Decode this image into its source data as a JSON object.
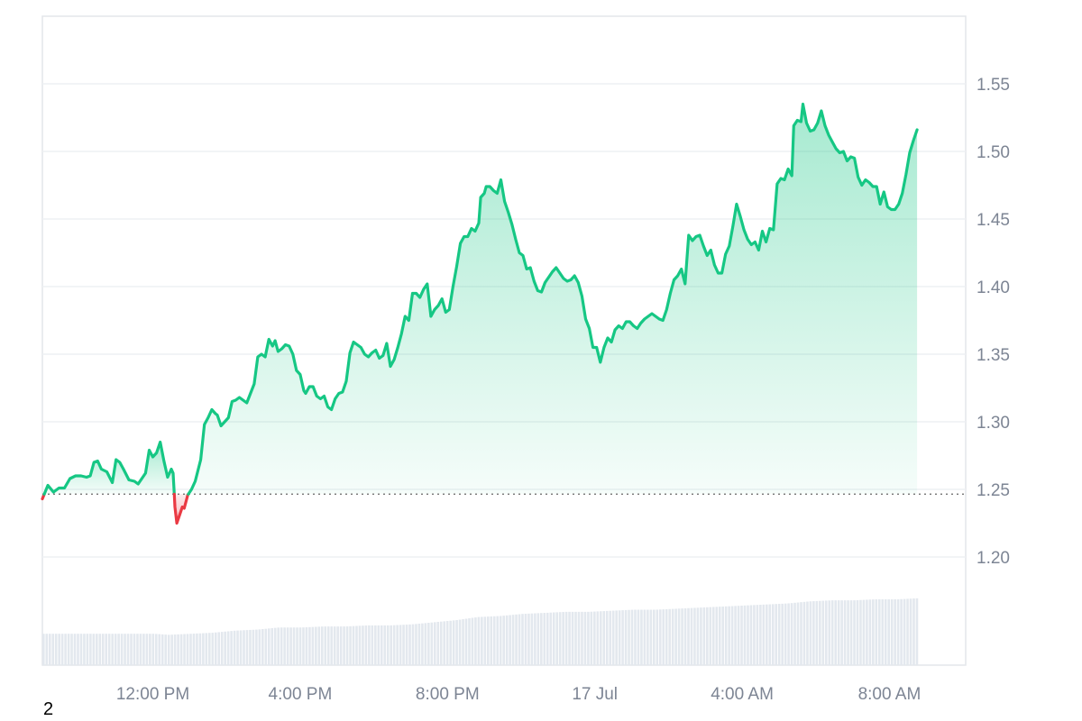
{
  "chart_data": {
    "type": "area",
    "title": "",
    "xlabel": "",
    "ylabel": "",
    "baseline": 1.2465,
    "ylim": [
      1.12,
      1.6
    ],
    "y_ticks": [
      1.2,
      1.25,
      1.3,
      1.35,
      1.4,
      1.45,
      1.5,
      1.55
    ],
    "y_tick_labels": [
      "1.20",
      "1.25",
      "1.30",
      "1.35",
      "1.40",
      "1.45",
      "1.50",
      "1.55"
    ],
    "x_tick_labels": [
      "12:00 PM",
      "4:00 PM",
      "8:00 PM",
      "17 Jul",
      "4:00 AM",
      "8:00 AM"
    ],
    "x_tick_hours": [
      3.0,
      7.0,
      11.0,
      15.0,
      19.0,
      23.0
    ],
    "x_range_hours": [
      0.0,
      25.07
    ],
    "grid": true,
    "legend": "none",
    "colors": {
      "up": "#16c784",
      "down": "#ea3943",
      "volume": "#e3e8ee",
      "grid": "#eef0f3",
      "axis_text": "#7d8594"
    },
    "series": [
      {
        "values": [
          [
            0.0,
            1.243
          ],
          [
            0.15,
            1.253
          ],
          [
            0.3,
            1.248
          ],
          [
            0.45,
            1.251
          ],
          [
            0.6,
            1.251
          ],
          [
            0.75,
            1.258
          ],
          [
            0.9,
            1.26
          ],
          [
            1.05,
            1.26
          ],
          [
            1.2,
            1.259
          ],
          [
            1.3,
            1.26
          ],
          [
            1.4,
            1.27
          ],
          [
            1.5,
            1.271
          ],
          [
            1.6,
            1.265
          ],
          [
            1.75,
            1.263
          ],
          [
            1.9,
            1.255
          ],
          [
            2.0,
            1.272
          ],
          [
            2.1,
            1.27
          ],
          [
            2.2,
            1.265
          ],
          [
            2.35,
            1.257
          ],
          [
            2.5,
            1.256
          ],
          [
            2.6,
            1.254
          ],
          [
            2.7,
            1.258
          ],
          [
            2.8,
            1.262
          ],
          [
            2.9,
            1.279
          ],
          [
            3.0,
            1.274
          ],
          [
            3.1,
            1.277
          ],
          [
            3.2,
            1.285
          ],
          [
            3.3,
            1.271
          ],
          [
            3.4,
            1.259
          ],
          [
            3.5,
            1.265
          ],
          [
            3.55,
            1.262
          ],
          [
            3.6,
            1.237
          ],
          [
            3.65,
            1.225
          ],
          [
            3.75,
            1.233
          ],
          [
            3.8,
            1.237
          ],
          [
            3.85,
            1.236
          ],
          [
            3.95,
            1.246
          ],
          [
            4.05,
            1.25
          ],
          [
            4.15,
            1.256
          ],
          [
            4.3,
            1.272
          ],
          [
            4.4,
            1.298
          ],
          [
            4.5,
            1.303
          ],
          [
            4.6,
            1.309
          ],
          [
            4.7,
            1.306
          ],
          [
            4.75,
            1.305
          ],
          [
            4.85,
            1.297
          ],
          [
            4.95,
            1.3
          ],
          [
            5.05,
            1.303
          ],
          [
            5.15,
            1.315
          ],
          [
            5.25,
            1.316
          ],
          [
            5.35,
            1.318
          ],
          [
            5.45,
            1.316
          ],
          [
            5.55,
            1.314
          ],
          [
            5.65,
            1.321
          ],
          [
            5.75,
            1.328
          ],
          [
            5.85,
            1.348
          ],
          [
            5.95,
            1.35
          ],
          [
            6.05,
            1.348
          ],
          [
            6.15,
            1.361
          ],
          [
            6.25,
            1.356
          ],
          [
            6.32,
            1.36
          ],
          [
            6.4,
            1.352
          ],
          [
            6.5,
            1.354
          ],
          [
            6.6,
            1.357
          ],
          [
            6.7,
            1.356
          ],
          [
            6.8,
            1.35
          ],
          [
            6.9,
            1.338
          ],
          [
            7.0,
            1.335
          ],
          [
            7.1,
            1.323
          ],
          [
            7.15,
            1.321
          ],
          [
            7.25,
            1.326
          ],
          [
            7.35,
            1.326
          ],
          [
            7.45,
            1.319
          ],
          [
            7.55,
            1.317
          ],
          [
            7.65,
            1.319
          ],
          [
            7.75,
            1.311
          ],
          [
            7.85,
            1.309
          ],
          [
            7.95,
            1.317
          ],
          [
            8.05,
            1.321
          ],
          [
            8.15,
            1.322
          ],
          [
            8.25,
            1.33
          ],
          [
            8.35,
            1.351
          ],
          [
            8.45,
            1.359
          ],
          [
            8.55,
            1.357
          ],
          [
            8.65,
            1.355
          ],
          [
            8.75,
            1.35
          ],
          [
            8.85,
            1.348
          ],
          [
            8.95,
            1.351
          ],
          [
            9.05,
            1.353
          ],
          [
            9.15,
            1.347
          ],
          [
            9.25,
            1.349
          ],
          [
            9.35,
            1.358
          ],
          [
            9.45,
            1.341
          ],
          [
            9.55,
            1.346
          ],
          [
            9.65,
            1.355
          ],
          [
            9.75,
            1.365
          ],
          [
            9.85,
            1.378
          ],
          [
            9.95,
            1.375
          ],
          [
            10.05,
            1.395
          ],
          [
            10.15,
            1.395
          ],
          [
            10.25,
            1.392
          ],
          [
            10.35,
            1.398
          ],
          [
            10.45,
            1.402
          ],
          [
            10.55,
            1.378
          ],
          [
            10.65,
            1.383
          ],
          [
            10.75,
            1.386
          ],
          [
            10.85,
            1.391
          ],
          [
            10.95,
            1.381
          ],
          [
            11.05,
            1.383
          ],
          [
            11.15,
            1.4
          ],
          [
            11.25,
            1.415
          ],
          [
            11.35,
            1.432
          ],
          [
            11.45,
            1.437
          ],
          [
            11.55,
            1.437
          ],
          [
            11.65,
            1.443
          ],
          [
            11.75,
            1.441
          ],
          [
            11.85,
            1.447
          ],
          [
            11.9,
            1.466
          ],
          [
            12.0,
            1.469
          ],
          [
            12.05,
            1.474
          ],
          [
            12.15,
            1.474
          ],
          [
            12.25,
            1.471
          ],
          [
            12.35,
            1.469
          ],
          [
            12.45,
            1.479
          ],
          [
            12.55,
            1.463
          ],
          [
            12.65,
            1.455
          ],
          [
            12.75,
            1.446
          ],
          [
            12.85,
            1.435
          ],
          [
            12.95,
            1.425
          ],
          [
            13.05,
            1.423
          ],
          [
            13.15,
            1.413
          ],
          [
            13.25,
            1.414
          ],
          [
            13.35,
            1.404
          ],
          [
            13.45,
            1.397
          ],
          [
            13.55,
            1.396
          ],
          [
            13.65,
            1.403
          ],
          [
            13.75,
            1.407
          ],
          [
            13.85,
            1.411
          ],
          [
            13.95,
            1.414
          ],
          [
            14.05,
            1.41
          ],
          [
            14.15,
            1.406
          ],
          [
            14.25,
            1.404
          ],
          [
            14.35,
            1.405
          ],
          [
            14.45,
            1.408
          ],
          [
            14.55,
            1.403
          ],
          [
            14.65,
            1.393
          ],
          [
            14.75,
            1.376
          ],
          [
            14.85,
            1.369
          ],
          [
            14.95,
            1.355
          ],
          [
            15.05,
            1.355
          ],
          [
            15.15,
            1.344
          ],
          [
            15.25,
            1.355
          ],
          [
            15.35,
            1.362
          ],
          [
            15.45,
            1.359
          ],
          [
            15.55,
            1.368
          ],
          [
            15.65,
            1.371
          ],
          [
            15.75,
            1.369
          ],
          [
            15.85,
            1.374
          ],
          [
            15.95,
            1.374
          ],
          [
            16.05,
            1.371
          ],
          [
            16.15,
            1.369
          ],
          [
            16.25,
            1.373
          ],
          [
            16.35,
            1.376
          ],
          [
            16.45,
            1.378
          ],
          [
            16.55,
            1.38
          ],
          [
            16.65,
            1.378
          ],
          [
            16.75,
            1.376
          ],
          [
            16.85,
            1.375
          ],
          [
            16.95,
            1.383
          ],
          [
            17.05,
            1.395
          ],
          [
            17.15,
            1.405
          ],
          [
            17.25,
            1.408
          ],
          [
            17.35,
            1.413
          ],
          [
            17.45,
            1.402
          ],
          [
            17.55,
            1.438
          ],
          [
            17.65,
            1.434
          ],
          [
            17.75,
            1.437
          ],
          [
            17.85,
            1.438
          ],
          [
            17.95,
            1.43
          ],
          [
            18.05,
            1.423
          ],
          [
            18.15,
            1.427
          ],
          [
            18.25,
            1.416
          ],
          [
            18.35,
            1.41
          ],
          [
            18.45,
            1.41
          ],
          [
            18.55,
            1.424
          ],
          [
            18.65,
            1.43
          ],
          [
            18.75,
            1.445
          ],
          [
            18.85,
            1.461
          ],
          [
            18.95,
            1.452
          ],
          [
            19.05,
            1.442
          ],
          [
            19.15,
            1.435
          ],
          [
            19.25,
            1.431
          ],
          [
            19.35,
            1.433
          ],
          [
            19.45,
            1.427
          ],
          [
            19.55,
            1.441
          ],
          [
            19.65,
            1.433
          ],
          [
            19.75,
            1.443
          ],
          [
            19.85,
            1.442
          ],
          [
            19.95,
            1.476
          ],
          [
            20.05,
            1.48
          ],
          [
            20.15,
            1.479
          ],
          [
            20.25,
            1.487
          ],
          [
            20.35,
            1.482
          ],
          [
            20.4,
            1.519
          ],
          [
            20.5,
            1.523
          ],
          [
            20.6,
            1.522
          ],
          [
            20.65,
            1.535
          ],
          [
            20.75,
            1.521
          ],
          [
            20.85,
            1.515
          ],
          [
            20.95,
            1.516
          ],
          [
            21.05,
            1.521
          ],
          [
            21.15,
            1.53
          ],
          [
            21.25,
            1.519
          ],
          [
            21.35,
            1.512
          ],
          [
            21.45,
            1.507
          ],
          [
            21.55,
            1.502
          ],
          [
            21.65,
            1.499
          ],
          [
            21.75,
            1.5
          ],
          [
            21.85,
            1.493
          ],
          [
            21.95,
            1.496
          ],
          [
            22.05,
            1.495
          ],
          [
            22.15,
            1.481
          ],
          [
            22.25,
            1.475
          ],
          [
            22.35,
            1.479
          ],
          [
            22.45,
            1.477
          ],
          [
            22.55,
            1.474
          ],
          [
            22.65,
            1.474
          ],
          [
            22.75,
            1.461
          ],
          [
            22.85,
            1.47
          ],
          [
            22.95,
            1.459
          ],
          [
            23.05,
            1.457
          ],
          [
            23.15,
            1.457
          ],
          [
            23.25,
            1.461
          ],
          [
            23.35,
            1.469
          ],
          [
            23.45,
            1.483
          ],
          [
            23.55,
            1.499
          ],
          [
            23.65,
            1.508
          ],
          [
            23.75,
            1.516
          ]
        ]
      }
    ],
    "volume_series": {
      "values": [
        [
          0.0,
          0.3
        ],
        [
          0.6,
          0.3
        ],
        [
          1.2,
          0.3
        ],
        [
          1.8,
          0.3
        ],
        [
          2.4,
          0.3
        ],
        [
          3.0,
          0.3
        ],
        [
          3.4,
          0.29
        ],
        [
          4.0,
          0.3
        ],
        [
          4.6,
          0.31
        ],
        [
          5.2,
          0.33
        ],
        [
          5.8,
          0.34
        ],
        [
          6.4,
          0.36
        ],
        [
          7.0,
          0.36
        ],
        [
          7.6,
          0.37
        ],
        [
          8.2,
          0.37
        ],
        [
          8.8,
          0.38
        ],
        [
          9.4,
          0.38
        ],
        [
          10.0,
          0.39
        ],
        [
          10.6,
          0.41
        ],
        [
          11.2,
          0.43
        ],
        [
          11.8,
          0.46
        ],
        [
          12.4,
          0.47
        ],
        [
          13.0,
          0.49
        ],
        [
          13.6,
          0.5
        ],
        [
          14.2,
          0.51
        ],
        [
          14.8,
          0.51
        ],
        [
          15.4,
          0.52
        ],
        [
          16.0,
          0.53
        ],
        [
          16.6,
          0.53
        ],
        [
          17.2,
          0.54
        ],
        [
          17.8,
          0.55
        ],
        [
          18.4,
          0.56
        ],
        [
          19.0,
          0.57
        ],
        [
          19.6,
          0.58
        ],
        [
          20.2,
          0.59
        ],
        [
          20.8,
          0.61
        ],
        [
          21.4,
          0.62
        ],
        [
          22.0,
          0.62
        ],
        [
          22.6,
          0.63
        ],
        [
          23.2,
          0.63
        ],
        [
          23.75,
          0.64
        ]
      ]
    }
  },
  "footnote": "2"
}
